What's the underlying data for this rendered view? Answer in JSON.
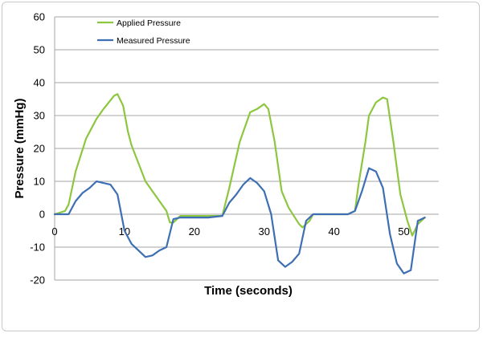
{
  "chart_data": {
    "type": "line",
    "title": "",
    "xlabel": "Time (seconds)",
    "ylabel": "Pressure (mmHg)",
    "xlim": [
      0,
      55
    ],
    "ylim": [
      -20,
      60
    ],
    "x_ticks": [
      0,
      10,
      20,
      30,
      40,
      50
    ],
    "y_ticks": [
      -20,
      -10,
      0,
      10,
      20,
      30,
      40,
      50,
      60
    ],
    "grid": "horizontal",
    "legend_position": "top-left",
    "series": [
      {
        "name": "Applied Pressure",
        "color": "#8dc63f",
        "x": [
          0,
          1.5,
          2,
          3,
          4.5,
          6,
          7,
          8.5,
          9,
          9.8,
          10.5,
          11,
          13,
          14.5,
          16,
          16.5,
          17,
          18,
          20,
          22,
          24,
          25,
          26.5,
          28,
          29,
          30,
          30.6,
          31.5,
          32.5,
          33.5,
          35,
          35.5,
          36.5,
          37,
          38,
          41,
          42,
          43,
          43.5,
          44.5,
          45,
          46,
          47,
          47.6,
          48.5,
          49.5,
          50.5,
          51.2,
          52,
          53
        ],
        "y": [
          0,
          1,
          3,
          13,
          23,
          29,
          32,
          36,
          36.5,
          33,
          25,
          21,
          10,
          5.5,
          1,
          -2.5,
          -2.5,
          -0.5,
          -0.5,
          -0.5,
          -0.5,
          8,
          22,
          31,
          32,
          33.5,
          32,
          22,
          7,
          2,
          -3,
          -4,
          -2,
          0,
          0,
          0,
          0,
          1,
          9,
          22,
          30,
          34,
          35.5,
          35,
          22,
          6,
          -2,
          -6.5,
          -3,
          -1
        ]
      },
      {
        "name": "Measured Pressure",
        "color": "#3e6fb4",
        "x": [
          0,
          2,
          3,
          4,
          5,
          6,
          7,
          8,
          9,
          10,
          11,
          12,
          13,
          14,
          15,
          16,
          17,
          18,
          20,
          22,
          24,
          25,
          26,
          27,
          28,
          29,
          30,
          31,
          32,
          33,
          34,
          35,
          36,
          37,
          38,
          41,
          42,
          43,
          44,
          45,
          46,
          47,
          48,
          49,
          50,
          51,
          52,
          53
        ],
        "y": [
          0,
          0,
          4,
          6.5,
          8,
          10,
          9.5,
          9,
          6,
          -5,
          -9,
          -11,
          -13,
          -12.5,
          -11,
          -10,
          -1.5,
          -1,
          -1,
          -1,
          -0.5,
          3.5,
          6,
          9,
          11,
          9.5,
          7,
          0,
          -14,
          -16,
          -14.5,
          -12,
          -2,
          0,
          0,
          0,
          0,
          1,
          7,
          14,
          13,
          8,
          -6,
          -15,
          -18,
          -17,
          -2,
          -1
        ]
      }
    ]
  }
}
